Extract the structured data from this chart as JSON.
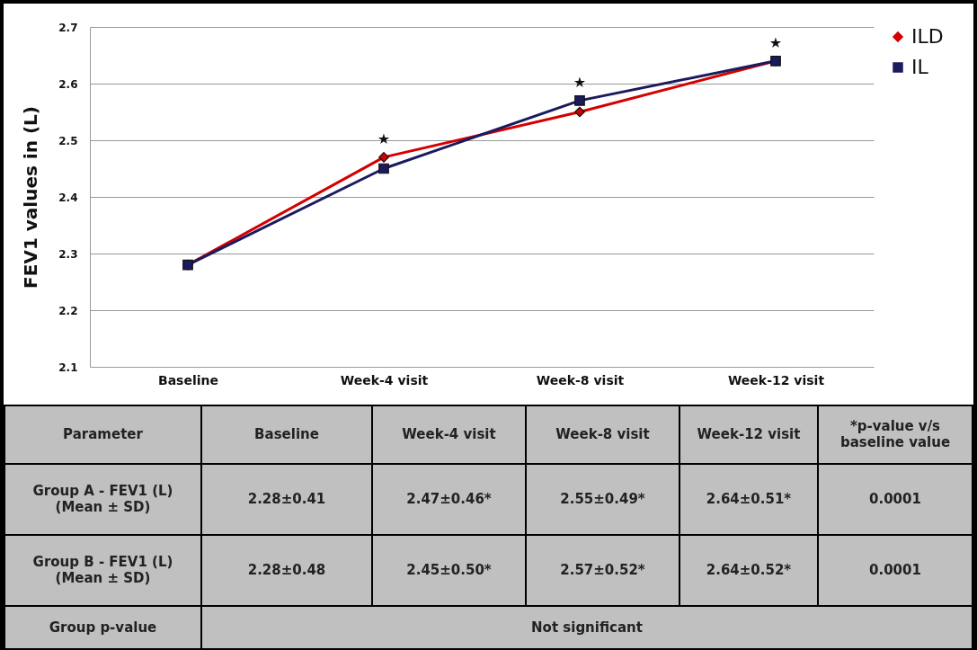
{
  "chart_data": {
    "type": "line",
    "categories": [
      "Baseline",
      "Week-4 visit",
      "Week-8 visit",
      "Week-12 visit"
    ],
    "ylabel": "FEV1 values in (L)",
    "series": [
      {
        "name": "ILD",
        "color": "#d40000",
        "marker": "diamond",
        "values": [
          2.28,
          2.47,
          2.55,
          2.64
        ]
      },
      {
        "name": "IL",
        "color": "#1a1a5e",
        "marker": "square",
        "values": [
          2.28,
          2.45,
          2.57,
          2.64
        ]
      }
    ],
    "ylim": [
      2.1,
      2.7
    ],
    "yticks": [
      2.1,
      2.2,
      2.3,
      2.4,
      2.5,
      2.6,
      2.7
    ],
    "grid": "y",
    "legend": "right",
    "annotations": [
      "Parameter",
      "*p-value v/s baseline value",
      "Group A - FEV1 (L) (Mean ± SD)",
      "2.28±0.41",
      "2.47±0.46*",
      "2.55±0.49*",
      "2.64±0.51*",
      "0.0001",
      "Group B - FEV1 (L) (Mean ± SD)",
      "2.28±0.48",
      "2.45±0.50*",
      "2.57±0.52*",
      "2.64±0.52*",
      "0.0001",
      "Group p-value",
      "Not significant",
      "★",
      "★",
      "★"
    ]
  }
}
